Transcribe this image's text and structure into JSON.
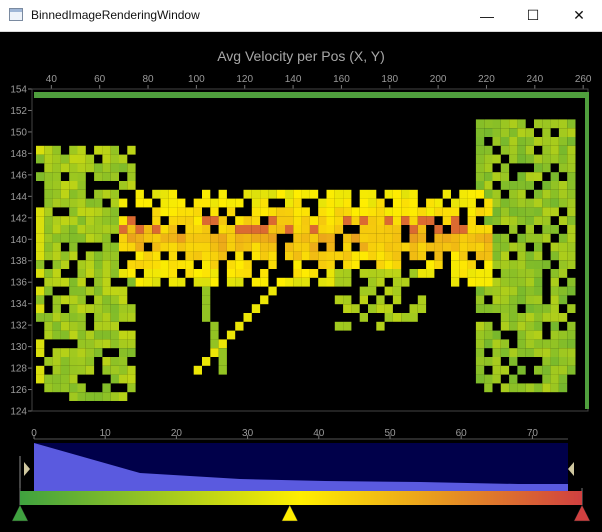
{
  "window": {
    "title": "BinnedImageRenderingWindow",
    "minimize": "—",
    "maximize": "☐",
    "close": "✕"
  },
  "chart_data": {
    "type": "heatmap",
    "title": "Avg Velocity per Pos (X, Y)",
    "x_ticks": [
      "40",
      "60",
      "80",
      "100",
      "120",
      "140",
      "160",
      "180",
      "200",
      "220",
      "240",
      "260"
    ],
    "y_ticks": [
      "124",
      "126",
      "128",
      "130",
      "132",
      "134",
      "136",
      "138",
      "140",
      "142",
      "144",
      "146",
      "148",
      "150",
      "152",
      "154"
    ],
    "xlim": [
      32,
      262
    ],
    "ylim": [
      124,
      154
    ],
    "grid": false,
    "colorscale": [
      "#3fa23f",
      "#ffee00",
      "#d04040"
    ]
  },
  "histogram": {
    "x_ticks": [
      "0",
      "10",
      "20",
      "30",
      "40",
      "50",
      "60",
      "70"
    ],
    "xlim": [
      0,
      75
    ],
    "fill_color": "#5a5adf",
    "background": "#00004a"
  },
  "colorbar": {
    "gradient": [
      "#3fa23f",
      "#ffee00",
      "#d04040"
    ],
    "handles": [
      {
        "color": "#3fa23f",
        "value": 0
      },
      {
        "color": "#ffee00",
        "value": 36
      },
      {
        "color": "#d04040",
        "value": 75
      }
    ]
  }
}
